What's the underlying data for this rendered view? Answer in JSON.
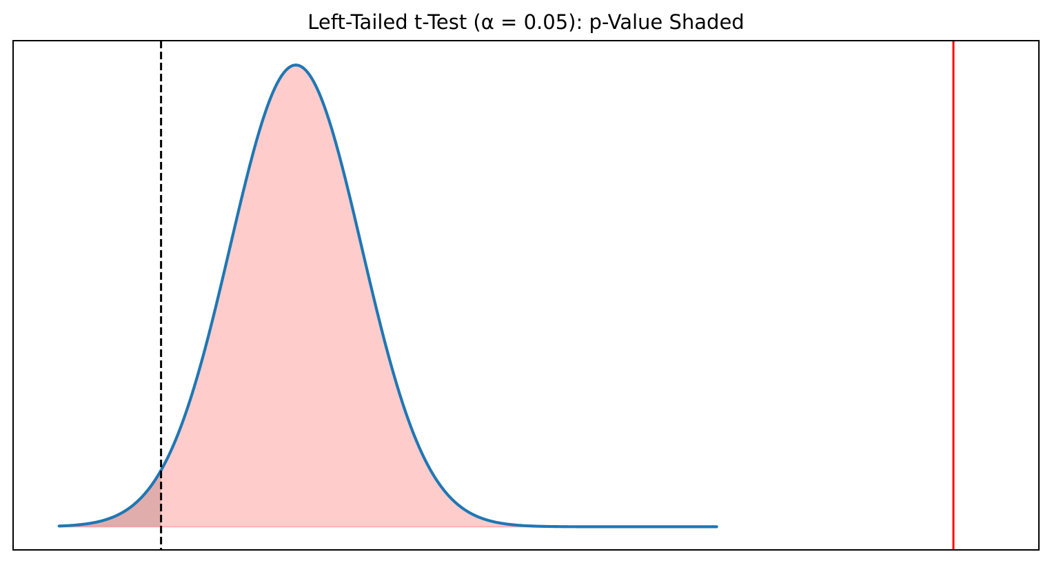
{
  "chart_data": {
    "type": "area",
    "title": "Left-Tailed t-Test (α = 0.05): p-Value Shaded",
    "xlabel": "",
    "ylabel": "",
    "grid": false,
    "x_ticks_visible": false,
    "y_ticks_visible": false,
    "xlim": [
      -4.3,
      11.3
    ],
    "ylim": [
      -0.02,
      0.42
    ],
    "distribution": {
      "name": "t",
      "curve_x_range": [
        -3.6,
        6.4
      ],
      "location": 0.0,
      "scale": 1.0
    },
    "critical_value": -2.05,
    "test_statistic": 10.0,
    "series": [
      {
        "kind": "density-curve",
        "color": "#1f77b4"
      },
      {
        "kind": "p-value-area",
        "color": "#ff9999",
        "opacity": 0.5,
        "from": -3.6,
        "to": 6.4
      },
      {
        "kind": "rejection-region-area",
        "color": "#bc8585",
        "opacity": 0.45,
        "from": -3.6,
        "to": -2.05
      },
      {
        "kind": "critical-value-line",
        "color": "#000000",
        "style": "dashed"
      },
      {
        "kind": "test-statistic-line",
        "color": "#ff0000",
        "style": "solid"
      }
    ]
  }
}
